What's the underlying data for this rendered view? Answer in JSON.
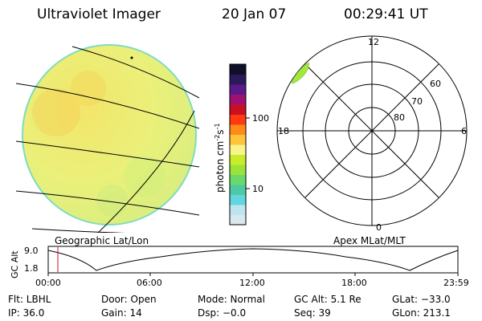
{
  "header": {
    "instrument": "Ultraviolet Imager",
    "date": "20 Jan 07",
    "time": "00:29:41 UT"
  },
  "panels": {
    "left_label": "Geographic Lat/Lon",
    "right_label": "Apex MLat/MLT"
  },
  "colorbar": {
    "unit_label": "photon cm",
    "unit_exp1": "-2",
    "unit_s": "s",
    "unit_exp2": "-1",
    "tick_100": "100",
    "tick_10": "10",
    "colors": [
      "#d8e8ec",
      "#bfe4f0",
      "#5fd6e0",
      "#4fc9a4",
      "#69d96b",
      "#9be33a",
      "#c7ec2a",
      "#f7f58a",
      "#ffc43a",
      "#ff8a1a",
      "#ff3a10",
      "#c81020",
      "#a01070",
      "#5a1a8a",
      "#2a1a5a",
      "#10102a"
    ]
  },
  "polar": {
    "mlt_labels": {
      "top": "12",
      "left": "18",
      "right": "6",
      "bottom": "0"
    },
    "lat_labels": [
      "60",
      "70",
      "80"
    ]
  },
  "altitude_strip": {
    "ylabel": "GC Alt",
    "y_max": "9.0",
    "y_min": "1.8",
    "x_ticks": [
      "00:00",
      "06:00",
      "12:00",
      "18:00",
      "23:59"
    ]
  },
  "info": {
    "flt": "Flt: LBHL",
    "door": "Door: Open",
    "mode": "Mode: Normal",
    "gc_alt": "GC Alt: 5.1 Re",
    "glat": "GLat: −33.0",
    "ip": "IP: 36.0",
    "gain": "Gain: 14",
    "dsp": "Dsp:   −0.0",
    "seq": "Seq: 39",
    "glon": "GLon: 213.1"
  },
  "colors": {
    "disk_fill": "#e9f07a",
    "disk_edge": "#7fdcc0",
    "marker": "#c8102e"
  }
}
